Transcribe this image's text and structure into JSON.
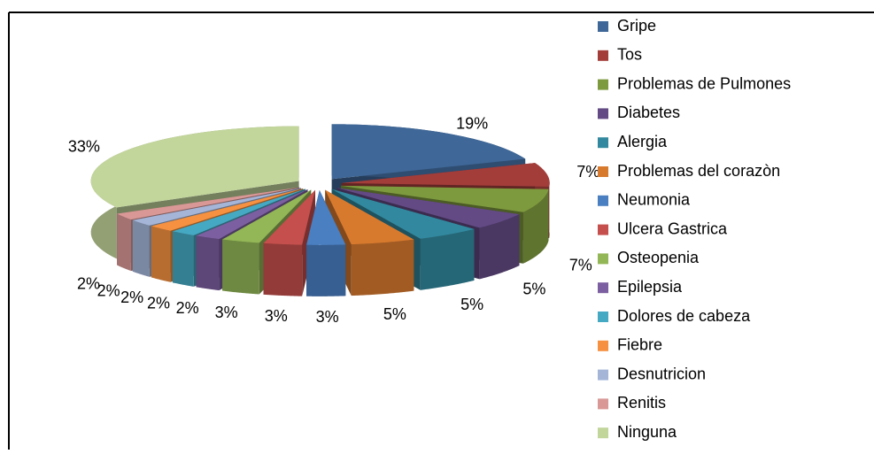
{
  "chart_data": {
    "type": "pie3d",
    "categories": [
      "Gripe",
      "Tos",
      "Problemas de Pulmones",
      "Diabetes",
      "Alergia",
      "Problemas del corazòn",
      "Neumonia",
      "Ulcera Gastrica",
      "Osteopenia",
      "Epilepsia",
      "Dolores de cabeza",
      "Fiebre",
      "Desnutricion",
      "Renitis",
      "Ninguna"
    ],
    "values": [
      19,
      7,
      7,
      5,
      5,
      5,
      3,
      3,
      3,
      2,
      2,
      2,
      2,
      2,
      33
    ],
    "value_labels": [
      "19%",
      "7%",
      "7%",
      "5%",
      "5%",
      "5%",
      "3%",
      "3%",
      "3%",
      "2%",
      "2%",
      "2%",
      "2%",
      "2%",
      "33%"
    ],
    "colors": [
      "#3f6797",
      "#a33d3a",
      "#7e9a3e",
      "#634a84",
      "#32899f",
      "#d87a2e",
      "#4a7fc1",
      "#c44f4c",
      "#93b656",
      "#7c5fa0",
      "#46a9c3",
      "#f59140",
      "#a4b5d8",
      "#d99896",
      "#c2d59b"
    ],
    "legend": "right"
  }
}
